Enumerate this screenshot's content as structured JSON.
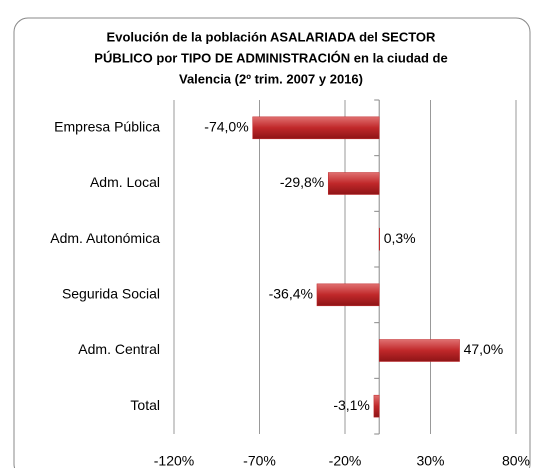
{
  "chart_data": {
    "type": "barh",
    "title": [
      "Evolución de la población ASALARIADA del SECTOR",
      "PÚBLICO por TIPO DE ADMINISTRACIÓN en la ciudad de",
      "Valencia (2º trim. 2007 y 2016)"
    ],
    "categories": [
      "Empresa Pública",
      "Adm. Local",
      "Adm. Autonómica",
      "Segurida Social",
      "Adm. Central",
      "Total"
    ],
    "values": [
      -74.0,
      -29.8,
      0.3,
      -36.4,
      47.0,
      -3.1
    ],
    "value_labels": [
      "-74,0%",
      "-29,8%",
      "0,3%",
      "-36,4%",
      "47,0%",
      "-3,1%"
    ],
    "color": "#c0282a",
    "xlim": [
      -120,
      80
    ],
    "xticks": [
      {
        "value": -120,
        "label": "-120%"
      },
      {
        "value": -70,
        "label": "-70%"
      },
      {
        "value": -20,
        "label": "-20%"
      },
      {
        "value": 30,
        "label": "30%"
      },
      {
        "value": 80,
        "label": "80%"
      }
    ],
    "grid": true
  }
}
